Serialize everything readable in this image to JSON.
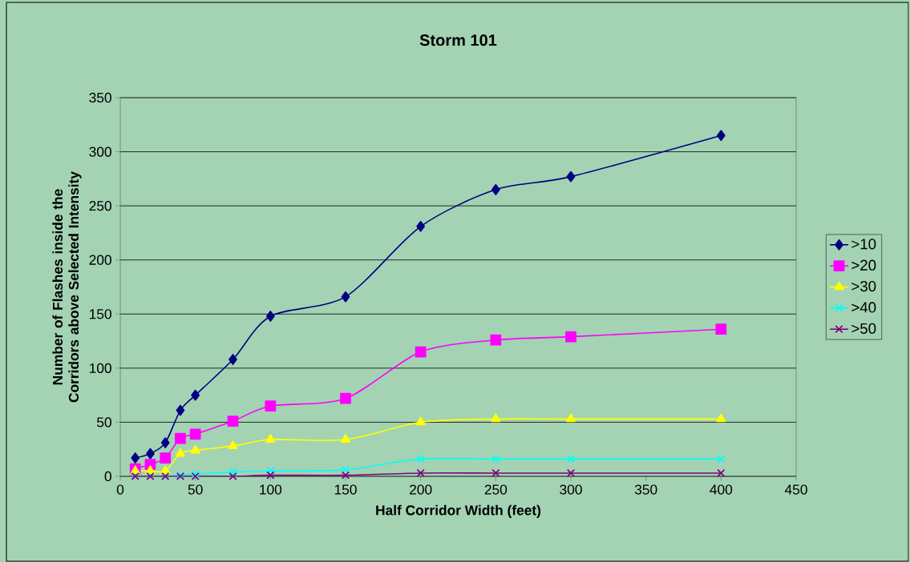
{
  "chart_data": {
    "type": "line",
    "title": "Storm 101",
    "xlabel": "Half Corridor Width (feet)",
    "ylabel": "Number of Flashes inside the Corridors above Selected Intensity",
    "x": [
      10,
      20,
      30,
      40,
      50,
      75,
      100,
      150,
      200,
      250,
      300,
      400
    ],
    "series": [
      {
        "name": ">10",
        "color": "#000080",
        "marker": "diamond",
        "values": [
          17,
          21,
          31,
          61,
          75,
          108,
          148,
          166,
          231,
          265,
          277,
          315
        ]
      },
      {
        "name": ">20",
        "color": "#ff00ff",
        "marker": "square",
        "values": [
          7,
          11,
          17,
          35,
          39,
          51,
          65,
          72,
          115,
          126,
          129,
          136
        ]
      },
      {
        "name": ">30",
        "color": "#ffff00",
        "marker": "triangle",
        "values": [
          5,
          5,
          5,
          21,
          24,
          28,
          34,
          34,
          50,
          53,
          53,
          53
        ]
      },
      {
        "name": ">40",
        "color": "#00ffff",
        "marker": "cross",
        "values": [
          0,
          0,
          0,
          1,
          2,
          4,
          5,
          6,
          16,
          16,
          16,
          16
        ]
      },
      {
        "name": ">50",
        "color": "#800080",
        "marker": "cross",
        "values": [
          0,
          0,
          0,
          0,
          0,
          0,
          1,
          1,
          3,
          3,
          3,
          3
        ]
      }
    ],
    "xlim": [
      0,
      450
    ],
    "xticks": [
      0,
      50,
      100,
      150,
      200,
      250,
      300,
      350,
      400,
      450
    ],
    "ylim": [
      0,
      350
    ],
    "yticks": [
      0,
      50,
      100,
      150,
      200,
      250,
      300,
      350
    ],
    "grid": "y",
    "legend": "right",
    "line_style": "solid"
  }
}
